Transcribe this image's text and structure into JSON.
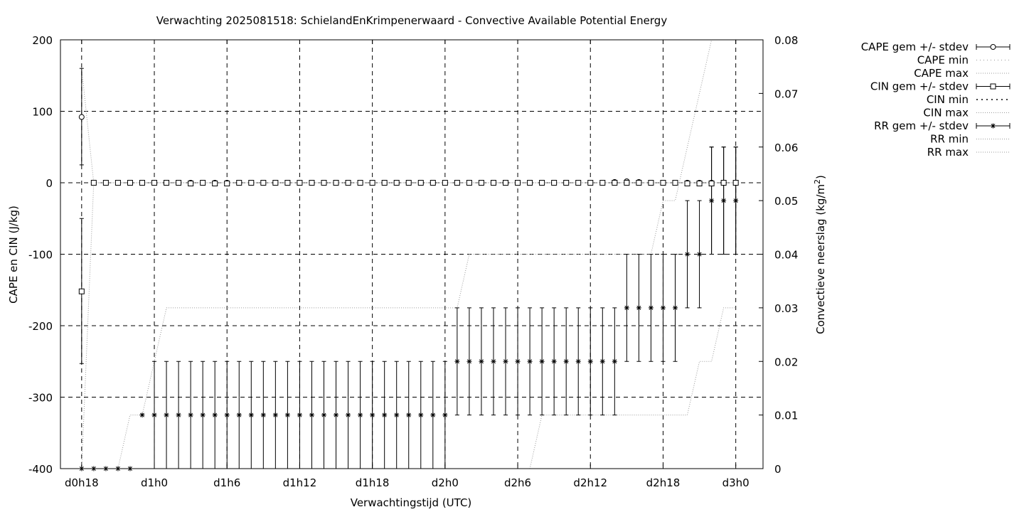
{
  "chart_data": {
    "type": "line",
    "title": "Verwachting 2025081518: SchielandEnKrimpenerwaard - Convective Available Potential Energy",
    "xlabel": "Verwachtingstijd (UTC)",
    "ylabel": "CAPE en CIN (J/kg)",
    "y2label_main": "Convectieve neerslag (kg/m",
    "y2label_sup": "2",
    "y2label_end": ")",
    "x_unit": "hours since d0h0",
    "xlim": [
      16.25,
      74.25
    ],
    "ylim": [
      -400,
      200
    ],
    "y2lim": [
      0,
      0.08
    ],
    "grid": true,
    "x_ticks": [
      {
        "x": 18,
        "label": "d0h18"
      },
      {
        "x": 24,
        "label": "d1h0"
      },
      {
        "x": 30,
        "label": "d1h6"
      },
      {
        "x": 36,
        "label": "d1h12"
      },
      {
        "x": 42,
        "label": "d1h18"
      },
      {
        "x": 48,
        "label": "d2h0"
      },
      {
        "x": 54,
        "label": "d2h6"
      },
      {
        "x": 60,
        "label": "d2h12"
      },
      {
        "x": 66,
        "label": "d2h18"
      },
      {
        "x": 72,
        "label": "d3h0"
      }
    ],
    "y_ticks": [
      200,
      100,
      0,
      -100,
      -200,
      -300,
      -400
    ],
    "y2_ticks": [
      "0.08",
      "0.07",
      "0.06",
      "0.05",
      "0.04",
      "0.03",
      "0.02",
      "0.01",
      "0"
    ],
    "legend_position": "top-right",
    "legend": [
      {
        "label": "CAPE gem +/- stdev",
        "style": "errorbar",
        "marker": "circle"
      },
      {
        "label": "CAPE min",
        "style": "dotted-sparse"
      },
      {
        "label": "CAPE max",
        "style": "dotted"
      },
      {
        "label": "CIN gem +/- stdev",
        "style": "errorbar",
        "marker": "square"
      },
      {
        "label": "CIN min",
        "style": "dotted-bold"
      },
      {
        "label": "CIN max",
        "style": "dotted"
      },
      {
        "label": "RR gem +/- stdev",
        "style": "errorbar",
        "marker": "star"
      },
      {
        "label": "RR min",
        "style": "dotted"
      },
      {
        "label": "RR max",
        "style": "dotted"
      }
    ],
    "series": [
      {
        "key": "cape",
        "axis": "y1",
        "marker": "circle",
        "points": [
          {
            "x": 18,
            "y": 92,
            "lo": 25,
            "hi": 160
          },
          {
            "x": 19,
            "y": 0
          },
          {
            "x": 20,
            "y": 0
          },
          {
            "x": 21,
            "y": 0
          },
          {
            "x": 22,
            "y": 0
          },
          {
            "x": 23,
            "y": 0
          },
          {
            "x": 24,
            "y": 0
          },
          {
            "x": 25,
            "y": 0
          },
          {
            "x": 26,
            "y": 0
          },
          {
            "x": 27,
            "y": 0
          },
          {
            "x": 28,
            "y": 0
          },
          {
            "x": 29,
            "y": 0
          },
          {
            "x": 30,
            "y": 0
          },
          {
            "x": 31,
            "y": 0
          },
          {
            "x": 32,
            "y": 0
          },
          {
            "x": 33,
            "y": 0
          },
          {
            "x": 34,
            "y": 0
          },
          {
            "x": 35,
            "y": 0
          },
          {
            "x": 36,
            "y": 0
          },
          {
            "x": 37,
            "y": 0
          },
          {
            "x": 38,
            "y": 0
          },
          {
            "x": 39,
            "y": 0
          },
          {
            "x": 40,
            "y": 0
          },
          {
            "x": 41,
            "y": 0
          },
          {
            "x": 42,
            "y": 0
          },
          {
            "x": 43,
            "y": 0
          },
          {
            "x": 44,
            "y": 0
          },
          {
            "x": 45,
            "y": 0
          },
          {
            "x": 46,
            "y": 0
          },
          {
            "x": 47,
            "y": 0
          },
          {
            "x": 48,
            "y": 0
          },
          {
            "x": 49,
            "y": 0
          },
          {
            "x": 50,
            "y": 0
          },
          {
            "x": 51,
            "y": 0
          },
          {
            "x": 52,
            "y": 0
          },
          {
            "x": 53,
            "y": 0
          },
          {
            "x": 54,
            "y": 0
          },
          {
            "x": 55,
            "y": 0
          },
          {
            "x": 56,
            "y": 0
          },
          {
            "x": 57,
            "y": 0
          },
          {
            "x": 58,
            "y": 0
          },
          {
            "x": 59,
            "y": 0
          },
          {
            "x": 60,
            "y": 0
          },
          {
            "x": 61,
            "y": 0
          },
          {
            "x": 62,
            "y": 1
          },
          {
            "x": 63,
            "y": 2
          },
          {
            "x": 64,
            "y": 1
          },
          {
            "x": 65,
            "y": 0
          },
          {
            "x": 66,
            "y": 0
          },
          {
            "x": 67,
            "y": 0
          },
          {
            "x": 68,
            "y": 0
          },
          {
            "x": 69,
            "y": 0
          },
          {
            "x": 70,
            "y": 0
          },
          {
            "x": 71,
            "y": 0
          },
          {
            "x": 72,
            "y": 0
          }
        ]
      },
      {
        "key": "cin",
        "axis": "y1",
        "marker": "square",
        "points": [
          {
            "x": 18,
            "y": -152,
            "lo": -253,
            "hi": -50
          },
          {
            "x": 19,
            "y": 0
          },
          {
            "x": 20,
            "y": 0
          },
          {
            "x": 21,
            "y": 0
          },
          {
            "x": 22,
            "y": 0
          },
          {
            "x": 23,
            "y": 0
          },
          {
            "x": 24,
            "y": 0
          },
          {
            "x": 25,
            "y": 0
          },
          {
            "x": 26,
            "y": 0
          },
          {
            "x": 27,
            "y": -1
          },
          {
            "x": 28,
            "y": 0
          },
          {
            "x": 29,
            "y": -1
          },
          {
            "x": 30,
            "y": -1
          },
          {
            "x": 31,
            "y": 0
          },
          {
            "x": 32,
            "y": 0
          },
          {
            "x": 33,
            "y": 0
          },
          {
            "x": 34,
            "y": 0
          },
          {
            "x": 35,
            "y": 0
          },
          {
            "x": 36,
            "y": 0
          },
          {
            "x": 37,
            "y": 0
          },
          {
            "x": 38,
            "y": 0
          },
          {
            "x": 39,
            "y": 0
          },
          {
            "x": 40,
            "y": 0
          },
          {
            "x": 41,
            "y": 0
          },
          {
            "x": 42,
            "y": 0
          },
          {
            "x": 43,
            "y": 0
          },
          {
            "x": 44,
            "y": 0
          },
          {
            "x": 45,
            "y": 0
          },
          {
            "x": 46,
            "y": 0
          },
          {
            "x": 47,
            "y": 0
          },
          {
            "x": 48,
            "y": 0
          },
          {
            "x": 49,
            "y": 0
          },
          {
            "x": 50,
            "y": 0
          },
          {
            "x": 51,
            "y": 0
          },
          {
            "x": 52,
            "y": 0
          },
          {
            "x": 53,
            "y": 0
          },
          {
            "x": 54,
            "y": 0
          },
          {
            "x": 55,
            "y": 0
          },
          {
            "x": 56,
            "y": 0
          },
          {
            "x": 57,
            "y": 0
          },
          {
            "x": 58,
            "y": 0
          },
          {
            "x": 59,
            "y": 0
          },
          {
            "x": 60,
            "y": 0
          },
          {
            "x": 61,
            "y": 0
          },
          {
            "x": 62,
            "y": 0
          },
          {
            "x": 63,
            "y": 0
          },
          {
            "x": 64,
            "y": 0
          },
          {
            "x": 65,
            "y": 0
          },
          {
            "x": 66,
            "y": 0
          },
          {
            "x": 67,
            "y": 0
          },
          {
            "x": 68,
            "y": -1
          },
          {
            "x": 69,
            "y": -1
          },
          {
            "x": 70,
            "y": -1,
            "lo": -100,
            "hi": 50
          },
          {
            "x": 71,
            "y": 0,
            "lo": -100,
            "hi": 50
          },
          {
            "x": 72,
            "y": 0,
            "lo": -100,
            "hi": 50
          }
        ]
      },
      {
        "key": "rr",
        "axis": "y2",
        "marker": "star",
        "points": [
          {
            "x": 18,
            "y": 0
          },
          {
            "x": 19,
            "y": 0
          },
          {
            "x": 20,
            "y": 0
          },
          {
            "x": 21,
            "y": 0
          },
          {
            "x": 22,
            "y": 0
          },
          {
            "x": 23,
            "y": 0.01
          },
          {
            "x": 24,
            "y": 0.01,
            "lo": 0,
            "hi": 0.02
          },
          {
            "x": 25,
            "y": 0.01,
            "lo": 0,
            "hi": 0.02
          },
          {
            "x": 26,
            "y": 0.01,
            "lo": 0,
            "hi": 0.02
          },
          {
            "x": 27,
            "y": 0.01,
            "lo": 0,
            "hi": 0.02
          },
          {
            "x": 28,
            "y": 0.01,
            "lo": 0,
            "hi": 0.02
          },
          {
            "x": 29,
            "y": 0.01,
            "lo": 0,
            "hi": 0.02
          },
          {
            "x": 30,
            "y": 0.01,
            "lo": 0,
            "hi": 0.02
          },
          {
            "x": 31,
            "y": 0.01,
            "lo": 0,
            "hi": 0.02
          },
          {
            "x": 32,
            "y": 0.01,
            "lo": 0,
            "hi": 0.02
          },
          {
            "x": 33,
            "y": 0.01,
            "lo": 0,
            "hi": 0.02
          },
          {
            "x": 34,
            "y": 0.01,
            "lo": 0,
            "hi": 0.02
          },
          {
            "x": 35,
            "y": 0.01,
            "lo": 0,
            "hi": 0.02
          },
          {
            "x": 36,
            "y": 0.01,
            "lo": 0,
            "hi": 0.02
          },
          {
            "x": 37,
            "y": 0.01,
            "lo": 0,
            "hi": 0.02
          },
          {
            "x": 38,
            "y": 0.01,
            "lo": 0,
            "hi": 0.02
          },
          {
            "x": 39,
            "y": 0.01,
            "lo": 0,
            "hi": 0.02
          },
          {
            "x": 40,
            "y": 0.01,
            "lo": 0,
            "hi": 0.02
          },
          {
            "x": 41,
            "y": 0.01,
            "lo": 0,
            "hi": 0.02
          },
          {
            "x": 42,
            "y": 0.01,
            "lo": 0,
            "hi": 0.02
          },
          {
            "x": 43,
            "y": 0.01,
            "lo": 0,
            "hi": 0.02
          },
          {
            "x": 44,
            "y": 0.01,
            "lo": 0,
            "hi": 0.02
          },
          {
            "x": 45,
            "y": 0.01,
            "lo": 0,
            "hi": 0.02
          },
          {
            "x": 46,
            "y": 0.01,
            "lo": 0,
            "hi": 0.02
          },
          {
            "x": 47,
            "y": 0.01,
            "lo": 0,
            "hi": 0.02
          },
          {
            "x": 48,
            "y": 0.01,
            "lo": 0,
            "hi": 0.02
          },
          {
            "x": 49,
            "y": 0.02,
            "lo": 0.01,
            "hi": 0.03
          },
          {
            "x": 50,
            "y": 0.02,
            "lo": 0.01,
            "hi": 0.03
          },
          {
            "x": 51,
            "y": 0.02,
            "lo": 0.01,
            "hi": 0.03
          },
          {
            "x": 52,
            "y": 0.02,
            "lo": 0.01,
            "hi": 0.03
          },
          {
            "x": 53,
            "y": 0.02,
            "lo": 0.01,
            "hi": 0.03
          },
          {
            "x": 54,
            "y": 0.02,
            "lo": 0.01,
            "hi": 0.03
          },
          {
            "x": 55,
            "y": 0.02,
            "lo": 0.01,
            "hi": 0.03
          },
          {
            "x": 56,
            "y": 0.02,
            "lo": 0.01,
            "hi": 0.03
          },
          {
            "x": 57,
            "y": 0.02,
            "lo": 0.01,
            "hi": 0.03
          },
          {
            "x": 58,
            "y": 0.02,
            "lo": 0.01,
            "hi": 0.03
          },
          {
            "x": 59,
            "y": 0.02,
            "lo": 0.01,
            "hi": 0.03
          },
          {
            "x": 60,
            "y": 0.02,
            "lo": 0.01,
            "hi": 0.03
          },
          {
            "x": 61,
            "y": 0.02,
            "lo": 0.01,
            "hi": 0.03
          },
          {
            "x": 62,
            "y": 0.02,
            "lo": 0.01,
            "hi": 0.03
          },
          {
            "x": 63,
            "y": 0.03,
            "lo": 0.02,
            "hi": 0.04
          },
          {
            "x": 64,
            "y": 0.03,
            "lo": 0.02,
            "hi": 0.04
          },
          {
            "x": 65,
            "y": 0.03,
            "lo": 0.02,
            "hi": 0.04
          },
          {
            "x": 66,
            "y": 0.03,
            "lo": 0.02,
            "hi": 0.04
          },
          {
            "x": 67,
            "y": 0.03,
            "lo": 0.02,
            "hi": 0.04
          },
          {
            "x": 68,
            "y": 0.04,
            "lo": 0.03,
            "hi": 0.05
          },
          {
            "x": 69,
            "y": 0.04,
            "lo": 0.03,
            "hi": 0.05
          },
          {
            "x": 70,
            "y": 0.05,
            "lo": 0.04,
            "hi": 0.06
          },
          {
            "x": 71,
            "y": 0.05,
            "lo": 0.04,
            "hi": 0.06
          },
          {
            "x": 72,
            "y": 0.05,
            "lo": 0.04,
            "hi": 0.06
          }
        ]
      }
    ],
    "lines": [
      {
        "key": "cape_max",
        "axis": "y1",
        "points": [
          [
            18,
            160
          ],
          [
            19,
            0
          ],
          [
            72,
            0
          ]
        ]
      },
      {
        "key": "cin_min",
        "axis": "y1",
        "points": [
          [
            18,
            -400
          ],
          [
            19,
            0
          ],
          [
            72,
            0
          ]
        ]
      },
      {
        "key": "rr_max",
        "axis": "y2",
        "points": [
          [
            18,
            0
          ],
          [
            21,
            0
          ],
          [
            22,
            0.01
          ],
          [
            23,
            0.01
          ],
          [
            24,
            0.02
          ],
          [
            25,
            0.03
          ],
          [
            49,
            0.03
          ],
          [
            50,
            0.04
          ],
          [
            65,
            0.04
          ],
          [
            66,
            0.05
          ],
          [
            67,
            0.05
          ],
          [
            70,
            0.08
          ],
          [
            72,
            0.08
          ]
        ]
      },
      {
        "key": "rr_min",
        "axis": "y2",
        "points": [
          [
            18,
            0
          ],
          [
            55,
            0
          ],
          [
            56,
            0.01
          ],
          [
            68,
            0.01
          ],
          [
            69,
            0.02
          ],
          [
            70,
            0.02
          ],
          [
            71,
            0.03
          ],
          [
            72,
            0.03
          ]
        ]
      }
    ]
  }
}
